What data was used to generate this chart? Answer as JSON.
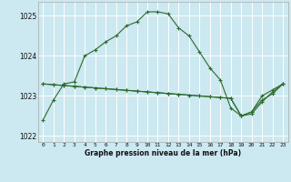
{
  "title": "Graphe pression niveau de la mer (hPa)",
  "bg_color": "#cce8f0",
  "grid_color": "#ffffff",
  "line_color": "#2d6a2d",
  "marker_color": "#2d6a2d",
  "hours": [
    0,
    1,
    2,
    3,
    4,
    5,
    6,
    7,
    8,
    9,
    10,
    11,
    12,
    13,
    14,
    15,
    16,
    17,
    18,
    19,
    20,
    21,
    22,
    23
  ],
  "pressure_main": [
    1022.4,
    1022.9,
    1023.3,
    1023.35,
    1024.0,
    1024.15,
    1024.35,
    1024.5,
    1024.75,
    1024.85,
    1025.1,
    1025.1,
    1025.05,
    1024.7,
    1024.5,
    1024.1,
    1023.7,
    1023.4,
    1022.7,
    1022.5,
    1022.6,
    1023.0,
    1023.15,
    1023.3
  ],
  "pressure_line2": [
    1023.3,
    1023.28,
    1023.26,
    1023.24,
    1023.22,
    1023.2,
    1023.18,
    1023.16,
    1023.14,
    1023.12,
    1023.1,
    1023.08,
    1023.06,
    1023.04,
    1023.02,
    1023.0,
    1022.98,
    1022.96,
    1022.94,
    1022.5,
    1022.6,
    1022.9,
    1023.05,
    1023.3
  ],
  "pressure_line3": [
    1023.3,
    1023.28,
    1023.26,
    1023.24,
    1023.22,
    1023.2,
    1023.18,
    1023.16,
    1023.14,
    1023.12,
    1023.1,
    1023.08,
    1023.06,
    1023.04,
    1023.02,
    1023.0,
    1022.98,
    1022.96,
    1022.94,
    1022.5,
    1022.55,
    1022.85,
    1023.1,
    1023.3
  ],
  "ylim_min": 1021.85,
  "ylim_max": 1025.35,
  "yticks": [
    1022,
    1023,
    1024,
    1025
  ],
  "xticks": [
    0,
    1,
    2,
    3,
    4,
    5,
    6,
    7,
    8,
    9,
    10,
    11,
    12,
    13,
    14,
    15,
    16,
    17,
    18,
    19,
    20,
    21,
    22,
    23
  ],
  "figsize": [
    3.2,
    2.0
  ],
  "dpi": 100
}
